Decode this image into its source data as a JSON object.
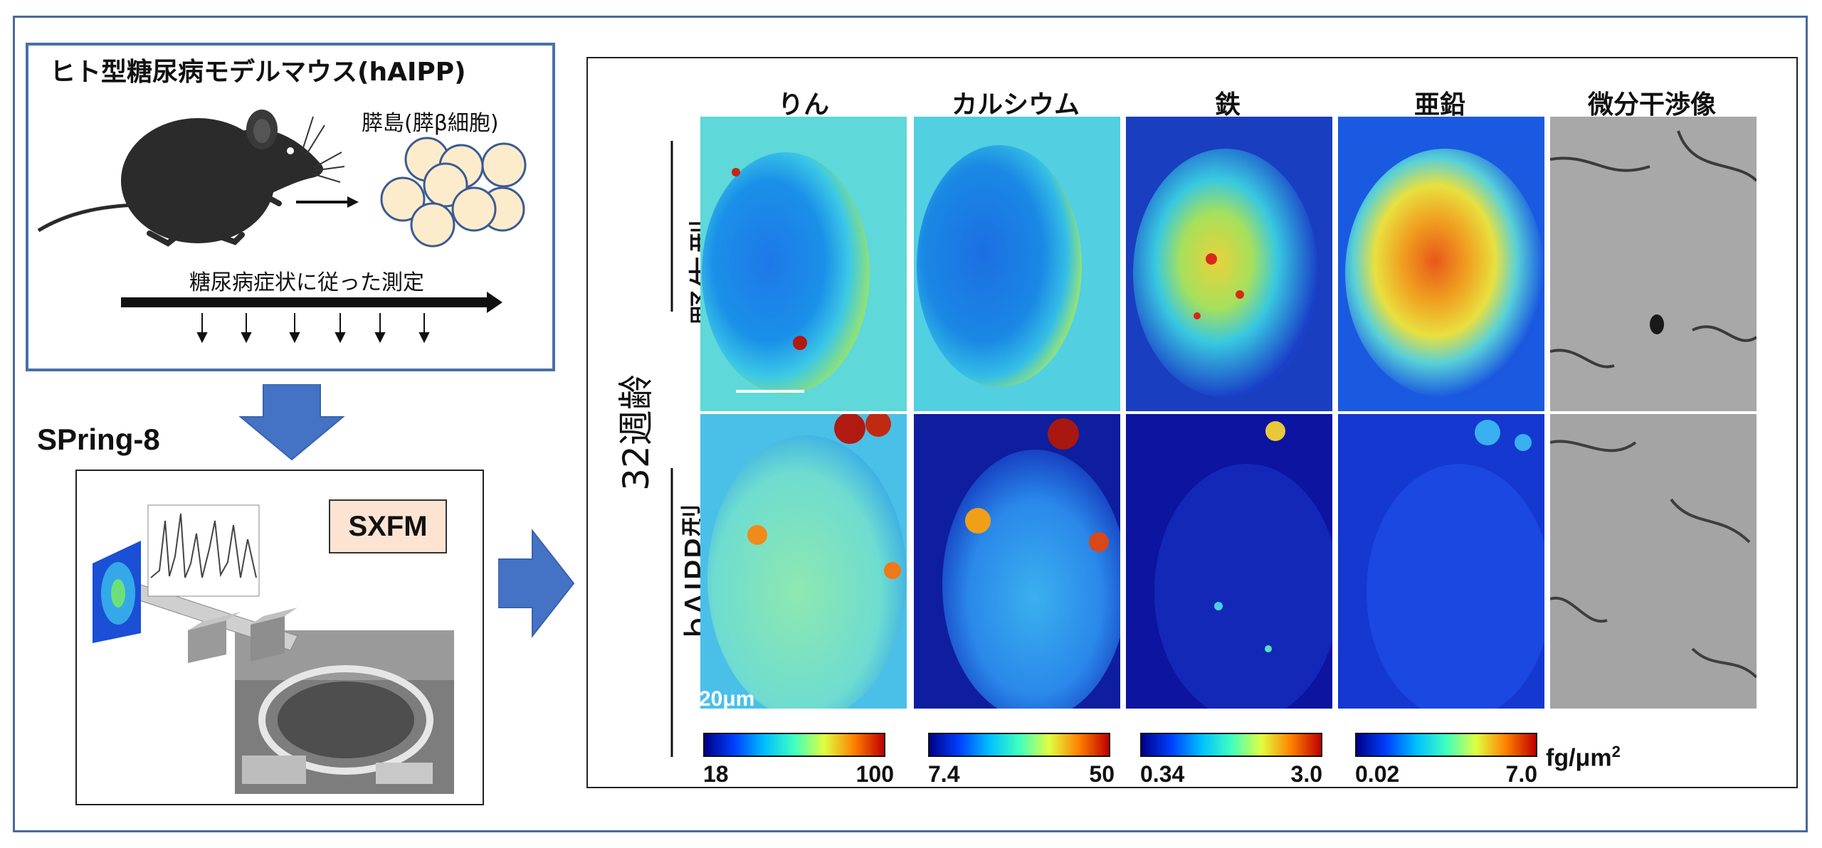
{
  "model": {
    "title": "ヒト型糖尿病モデルマウス(hAIPP)",
    "islet_label": "膵島(膵β細胞)",
    "timeline_label": "糖尿病症状に従った測定"
  },
  "facility": {
    "title": "SPring-8",
    "method_badge": "SXFM"
  },
  "results": {
    "columns": [
      "りん",
      "カルシウム",
      "鉄",
      "亜鉛",
      "微分干渉像"
    ],
    "age_label": "32週齢",
    "rows": [
      "野生型",
      "hAIPP型"
    ],
    "scale_bar": "20μm",
    "colorbars": [
      {
        "min": "18",
        "max": "100"
      },
      {
        "min": "7.4",
        "max": "50"
      },
      {
        "min": "0.34",
        "max": "3.0"
      },
      {
        "min": "0.02",
        "max": "7.0"
      }
    ],
    "unit": "fg/μm",
    "unit_exp": "2"
  },
  "colors": {
    "frame": "#4a6a9a",
    "arrow": "#4472c4",
    "badge": "#fde4d2",
    "islet_cell": "#fdeccb"
  }
}
